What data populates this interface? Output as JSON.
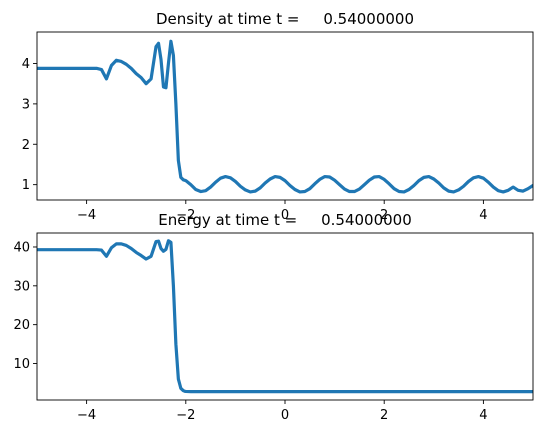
{
  "chart_data": [
    {
      "type": "line",
      "title": "Density at time t =     0.54000000",
      "xlabel": "",
      "ylabel": "",
      "xlim": [
        -5,
        5
      ],
      "ylim": [
        0.62,
        4.78
      ],
      "xticks": [
        -4,
        -2,
        0,
        2,
        4
      ],
      "xtick_labels": [
        "−4",
        "−2",
        "0",
        "2",
        "4"
      ],
      "yticks": [
        1,
        2,
        3,
        4
      ],
      "ytick_labels": [
        "1",
        "2",
        "3",
        "4"
      ],
      "grid": false,
      "series": [
        {
          "color": "#1f77b4",
          "x": [
            -5.0,
            -3.8,
            -3.7,
            -3.6,
            -3.5,
            -3.4,
            -3.3,
            -3.2,
            -3.1,
            -3.0,
            -2.9,
            -2.8,
            -2.7,
            -2.6,
            -2.55,
            -2.5,
            -2.45,
            -2.4,
            -2.35,
            -2.3,
            -2.25,
            -2.2,
            -2.15,
            -2.1,
            -2.05,
            -2.0,
            -1.98,
            -1.95,
            -1.9,
            -1.8,
            -1.7,
            -1.6,
            -1.5,
            -1.4,
            -1.3,
            -1.2,
            -1.1,
            -1.0,
            -0.9,
            -0.8,
            -0.7,
            -0.6,
            -0.5,
            -0.4,
            -0.3,
            -0.2,
            -0.1,
            0.0,
            0.1,
            0.2,
            0.3,
            0.4,
            0.5,
            0.6,
            0.7,
            0.8,
            0.9,
            1.0,
            1.1,
            1.2,
            1.3,
            1.4,
            1.5,
            1.6,
            1.7,
            1.8,
            1.9,
            2.0,
            2.1,
            2.2,
            2.3,
            2.4,
            2.5,
            2.6,
            2.7,
            2.8,
            2.9,
            3.0,
            3.1,
            3.2,
            3.3,
            3.4,
            3.5,
            3.6,
            3.7,
            3.8,
            3.9,
            4.0,
            4.1,
            4.2,
            4.3,
            4.4,
            4.5,
            4.6,
            4.7,
            4.8,
            4.9,
            5.0
          ],
          "y": [
            3.88,
            3.88,
            3.85,
            3.62,
            3.95,
            4.08,
            4.05,
            3.98,
            3.88,
            3.75,
            3.65,
            3.5,
            3.62,
            4.42,
            4.5,
            4.1,
            3.42,
            3.4,
            4.0,
            4.55,
            4.2,
            3.0,
            1.6,
            1.18,
            1.12,
            1.1,
            1.08,
            1.05,
            1.0,
            0.88,
            0.83,
            0.85,
            0.94,
            1.06,
            1.16,
            1.2,
            1.17,
            1.08,
            0.96,
            0.87,
            0.82,
            0.84,
            0.92,
            1.04,
            1.14,
            1.2,
            1.18,
            1.1,
            0.98,
            0.88,
            0.82,
            0.83,
            0.9,
            1.02,
            1.13,
            1.2,
            1.19,
            1.11,
            1.0,
            0.89,
            0.83,
            0.83,
            0.89,
            1.0,
            1.11,
            1.19,
            1.2,
            1.13,
            1.02,
            0.9,
            0.83,
            0.82,
            0.88,
            0.98,
            1.1,
            1.18,
            1.2,
            1.14,
            1.04,
            0.92,
            0.84,
            0.82,
            0.87,
            0.96,
            1.08,
            1.17,
            1.2,
            1.16,
            1.06,
            0.94,
            0.85,
            0.82,
            0.86,
            0.94,
            0.86,
            0.84,
            0.9,
            0.98
          ]
        }
      ]
    },
    {
      "type": "line",
      "title": "Energy at time t =     0.54000000",
      "xlabel": "",
      "ylabel": "",
      "xlim": [
        -5,
        5
      ],
      "ylim": [
        0.6,
        43.6
      ],
      "xticks": [
        -4,
        -2,
        0,
        2,
        4
      ],
      "xtick_labels": [
        "−4",
        "−2",
        "0",
        "2",
        "4"
      ],
      "yticks": [
        10,
        20,
        30,
        40
      ],
      "ytick_labels": [
        "10",
        "20",
        "30",
        "40"
      ],
      "grid": false,
      "series": [
        {
          "color": "#1f77b4",
          "x": [
            -5.0,
            -3.8,
            -3.7,
            -3.6,
            -3.5,
            -3.4,
            -3.3,
            -3.2,
            -3.1,
            -3.0,
            -2.9,
            -2.8,
            -2.7,
            -2.6,
            -2.55,
            -2.5,
            -2.45,
            -2.4,
            -2.35,
            -2.3,
            -2.25,
            -2.2,
            -2.15,
            -2.1,
            -2.05,
            -2.02,
            -2.0,
            -1.9,
            -1.5,
            -1.0,
            0.0,
            1.0,
            2.0,
            3.0,
            4.0,
            5.0
          ],
          "y": [
            39.3,
            39.3,
            39.2,
            37.6,
            39.8,
            40.8,
            40.8,
            40.4,
            39.6,
            38.6,
            37.8,
            36.9,
            37.6,
            41.4,
            41.5,
            39.6,
            38.9,
            39.4,
            41.6,
            41.2,
            30.0,
            15.0,
            6.0,
            3.6,
            3.0,
            2.85,
            2.8,
            2.75,
            2.75,
            2.75,
            2.75,
            2.75,
            2.75,
            2.75,
            2.75,
            2.75
          ]
        }
      ]
    }
  ]
}
